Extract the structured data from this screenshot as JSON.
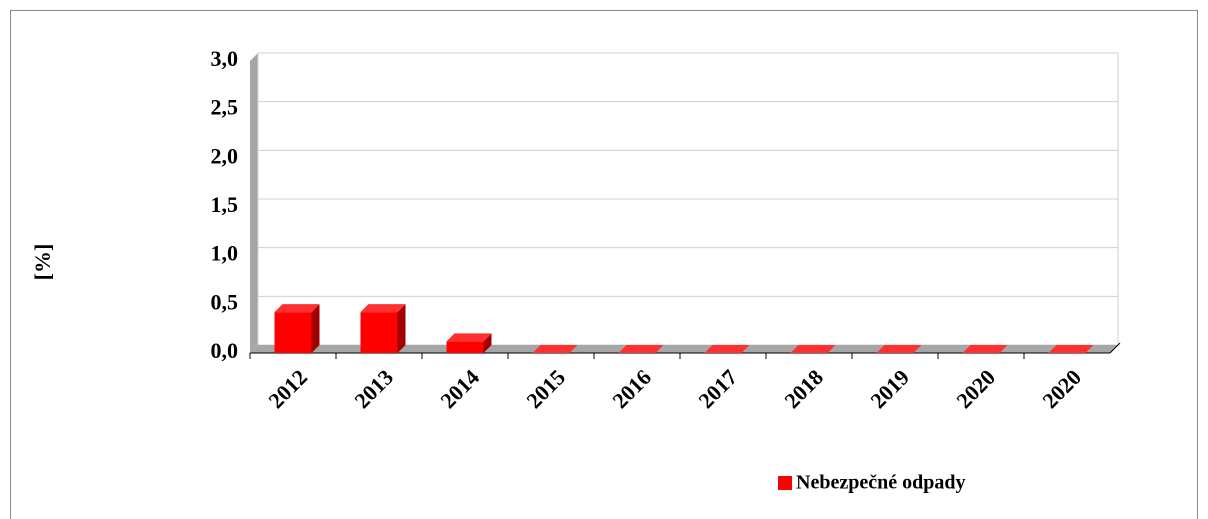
{
  "chart_data": {
    "type": "bar3d",
    "y_label": "[%]",
    "categories": [
      "2012",
      "2013",
      "2014",
      "2015",
      "2016",
      "2017",
      "2018",
      "2019",
      "2020",
      "2020"
    ],
    "series": [
      {
        "name": "Nebezpečné odpady",
        "color": "#ff0000",
        "values": [
          0.42,
          0.42,
          0.12,
          0,
          0,
          0,
          0,
          0,
          0,
          0
        ]
      }
    ],
    "ylim": [
      0,
      3
    ],
    "yticks": [
      {
        "value": 0,
        "label": "0,0"
      },
      {
        "value": 0.5,
        "label": "0,5"
      },
      {
        "value": 1,
        "label": "1,0"
      },
      {
        "value": 1.5,
        "label": "1,5"
      },
      {
        "value": 2,
        "label": "2,0"
      },
      {
        "value": 2.5,
        "label": "2,5"
      },
      {
        "value": 3,
        "label": "3,0"
      }
    ],
    "grid": true,
    "legend": "bottom"
  }
}
